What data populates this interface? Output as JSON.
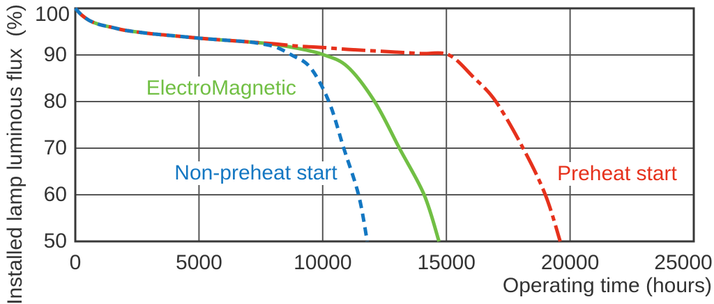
{
  "chart_data": {
    "type": "line",
    "title": "",
    "xlabel": "Operating time (hours)",
    "ylabel": "Installed lamp luminous flux  (%)",
    "xlim": [
      0,
      25000
    ],
    "ylim": [
      50,
      100
    ],
    "xticks": [
      0,
      5000,
      10000,
      15000,
      20000,
      25000
    ],
    "yticks": [
      100,
      90,
      80,
      70,
      60,
      50
    ],
    "grid": true,
    "grid_color": "#555555",
    "border_color": "#383838",
    "text_color": "#333333",
    "background": "#ffffff",
    "series": [
      {
        "name": "ElectroMagnetic",
        "color": "#71bf44",
        "line_style": "solid",
        "label_at": {
          "x": 5900,
          "y": 82.8
        },
        "points": [
          [
            0,
            100
          ],
          [
            250,
            98.6
          ],
          [
            600,
            97.3
          ],
          [
            1000,
            96.5
          ],
          [
            1500,
            95.9
          ],
          [
            2000,
            95.3
          ],
          [
            3000,
            94.6
          ],
          [
            4000,
            94.1
          ],
          [
            5000,
            93.6
          ],
          [
            6000,
            93.2
          ],
          [
            7000,
            92.8
          ],
          [
            8000,
            92.3
          ],
          [
            9000,
            91.4
          ],
          [
            10000,
            90.1
          ],
          [
            11000,
            87.5
          ],
          [
            12100,
            80
          ],
          [
            13100,
            70
          ],
          [
            14100,
            60
          ],
          [
            14700,
            50
          ]
        ]
      },
      {
        "name": "Preheat start",
        "color": "#e6311c",
        "line_style": "dash-dot",
        "label_at": {
          "x": 21900,
          "y": 64.5
        },
        "points": [
          [
            0,
            100
          ],
          [
            250,
            98.6
          ],
          [
            600,
            97.3
          ],
          [
            1000,
            96.5
          ],
          [
            1500,
            95.9
          ],
          [
            2000,
            95.3
          ],
          [
            3000,
            94.6
          ],
          [
            4000,
            94.1
          ],
          [
            5000,
            93.6
          ],
          [
            6000,
            93.2
          ],
          [
            7000,
            92.8
          ],
          [
            8000,
            92.4
          ],
          [
            9000,
            91.9
          ],
          [
            10000,
            91.6
          ],
          [
            11000,
            91.2
          ],
          [
            12000,
            90.9
          ],
          [
            13000,
            90.6
          ],
          [
            14000,
            90.3
          ],
          [
            15100,
            90
          ],
          [
            16100,
            85.2
          ],
          [
            17000,
            80
          ],
          [
            18100,
            70
          ],
          [
            19000,
            60
          ],
          [
            19600,
            50
          ]
        ]
      },
      {
        "name": "Non-preheat start",
        "color": "#1377c2",
        "line_style": "dashed",
        "label_at": {
          "x": 7300,
          "y": 64.6
        },
        "points": [
          [
            0,
            100
          ],
          [
            250,
            98.6
          ],
          [
            600,
            97.3
          ],
          [
            1000,
            96.5
          ],
          [
            1500,
            95.9
          ],
          [
            2000,
            95.3
          ],
          [
            3000,
            94.6
          ],
          [
            4000,
            94.1
          ],
          [
            5000,
            93.6
          ],
          [
            6000,
            93.2
          ],
          [
            7000,
            92.8
          ],
          [
            7500,
            92.4
          ],
          [
            8100,
            91.7
          ],
          [
            8740,
            90
          ],
          [
            9500,
            87.3
          ],
          [
            10250,
            80
          ],
          [
            10850,
            70
          ],
          [
            11450,
            60
          ],
          [
            11800,
            50
          ]
        ]
      }
    ]
  }
}
